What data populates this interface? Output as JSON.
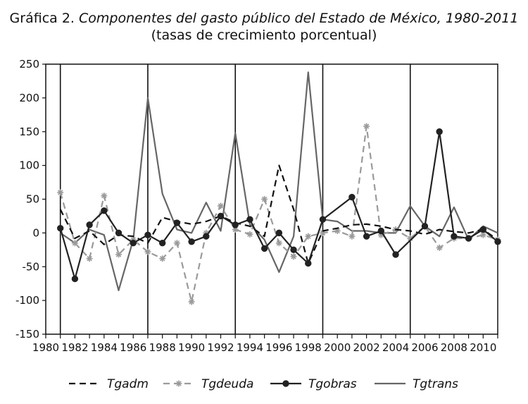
{
  "title": {
    "prefix": "Gráfica 2. ",
    "main": "Componentes del gasto público del Estado de México, 1980-2011",
    "subtitle": "(tasas de crecimiento porcentual)"
  },
  "chart_data": {
    "type": "line",
    "title": "Gráfica 2. Componentes del gasto público del Estado de México, 1980-2011",
    "subtitle": "(tasas de crecimiento porcentual)",
    "xlabel": "",
    "ylabel": "",
    "xlim": [
      1980,
      2011
    ],
    "ylim": [
      -150,
      250
    ],
    "yticks": [
      250,
      200,
      150,
      100,
      50,
      0,
      -50,
      -100,
      -150
    ],
    "xticks": [
      1980,
      1982,
      1984,
      1986,
      1988,
      1990,
      1992,
      1994,
      1996,
      1998,
      2000,
      2002,
      2004,
      2006,
      2008,
      2010
    ],
    "vertical_lines": [
      1981,
      1987,
      1993,
      1999,
      2005
    ],
    "grid": false,
    "legend_position": "bottom",
    "series": [
      {
        "name": "Tgadm",
        "color": "#111111",
        "style": "dashed",
        "marker": "none",
        "x": [
          1981,
          1982,
          1983,
          1984,
          1985,
          1986,
          1987,
          1988,
          1989,
          1990,
          1991,
          1992,
          1993,
          1994,
          1995,
          1996,
          1997,
          1998,
          1999,
          2000,
          2001,
          2002,
          2003,
          2004,
          2005,
          2006,
          2007,
          2008,
          2009,
          2010,
          2011
        ],
        "values": [
          35,
          -8,
          3,
          -17,
          -3,
          -5,
          -15,
          23,
          17,
          13,
          17,
          25,
          15,
          10,
          -5,
          100,
          35,
          -45,
          3,
          7,
          12,
          13,
          10,
          5,
          3,
          -2,
          5,
          2,
          0,
          5,
          -10
        ]
      },
      {
        "name": "Tgdeuda",
        "color": "#9a9a9a",
        "style": "dashed",
        "marker": "asterisk",
        "x": [
          1981,
          1982,
          1983,
          1984,
          1985,
          1986,
          1987,
          1988,
          1989,
          1990,
          1991,
          1992,
          1993,
          1994,
          1995,
          1996,
          1997,
          1998,
          1999,
          2000,
          2001,
          2002,
          2003,
          2004,
          2005,
          2006,
          2007,
          2008,
          2009,
          2010,
          2011
        ],
        "values": [
          60,
          -15,
          -38,
          55,
          -32,
          -10,
          -28,
          -38,
          -15,
          -102,
          0,
          40,
          5,
          -2,
          50,
          -15,
          -35,
          -5,
          0,
          3,
          -5,
          158,
          -3,
          5,
          -8,
          10,
          -22,
          -8,
          -8,
          -3,
          -10
        ]
      },
      {
        "name": "Tgobras",
        "color": "#222222",
        "style": "solid",
        "marker": "circle",
        "x": [
          1981,
          1982,
          1983,
          1984,
          1985,
          1986,
          1987,
          1988,
          1989,
          1990,
          1991,
          1992,
          1993,
          1994,
          1995,
          1996,
          1997,
          1998,
          1999,
          2001,
          2002,
          2003,
          2004,
          2006,
          2007,
          2008,
          2009,
          2010,
          2011
        ],
        "values": [
          7,
          -68,
          12,
          33,
          0,
          -15,
          -3,
          -15,
          15,
          -13,
          -5,
          25,
          12,
          20,
          -23,
          0,
          -25,
          -45,
          20,
          53,
          -5,
          3,
          -32,
          10,
          150,
          -5,
          -8,
          5,
          -13
        ]
      },
      {
        "name": "Tgtrans",
        "color": "#666666",
        "style": "solid",
        "marker": "none",
        "x": [
          1981,
          1982,
          1983,
          1984,
          1985,
          1986,
          1987,
          1988,
          1989,
          1990,
          1991,
          1992,
          1993,
          1994,
          1995,
          1996,
          1997,
          1998,
          1999,
          2000,
          2001,
          2002,
          2003,
          2004,
          2005,
          2006,
          2007,
          2008,
          2009,
          2010,
          2011
        ],
        "values": [
          0,
          -15,
          5,
          -3,
          -85,
          -10,
          200,
          58,
          5,
          0,
          45,
          3,
          148,
          13,
          -10,
          -58,
          -5,
          238,
          20,
          17,
          3,
          3,
          0,
          0,
          40,
          10,
          -5,
          38,
          -10,
          10,
          0
        ]
      }
    ]
  }
}
